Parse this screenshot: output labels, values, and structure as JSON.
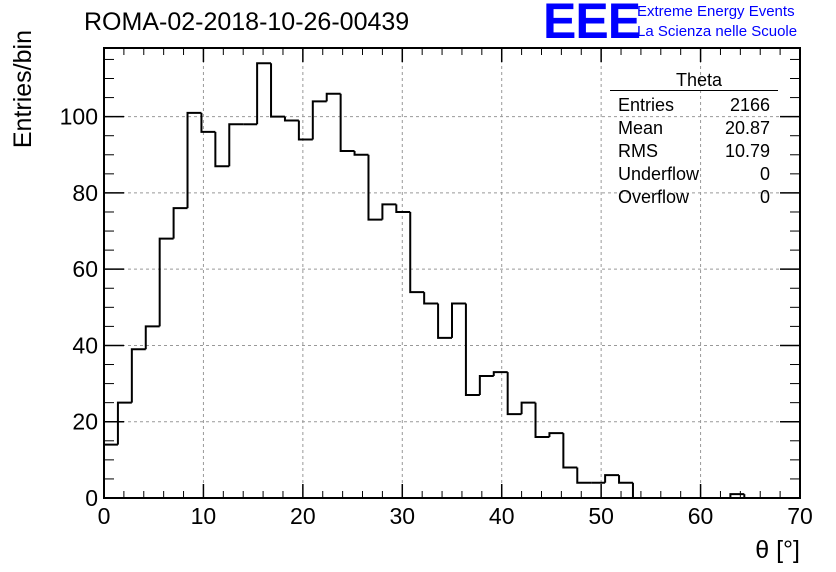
{
  "title": "ROMA-02-2018-10-26-00439",
  "logo": {
    "mark": "EEE",
    "line1": "Extreme Energy Events",
    "line2": "La Scienza nelle Scuole",
    "color": "#0000ff"
  },
  "stats_box": {
    "title": "Theta",
    "rows": [
      {
        "label": "Entries",
        "value": "2166"
      },
      {
        "label": "Mean",
        "value": "20.87"
      },
      {
        "label": "RMS",
        "value": "10.79"
      },
      {
        "label": "Underflow",
        "value": "0"
      },
      {
        "label": "Overflow",
        "value": "0"
      }
    ]
  },
  "chart_data": {
    "type": "histogram",
    "title": "ROMA-02-2018-10-26-00439",
    "xlabel": "θ [°]",
    "ylabel": "Entries/bin",
    "xlim": [
      0,
      70
    ],
    "ylim": [
      0,
      118
    ],
    "x_ticks": [
      0,
      10,
      20,
      30,
      40,
      50,
      60,
      70
    ],
    "y_ticks": [
      0,
      20,
      40,
      60,
      80,
      100
    ],
    "bin_width": 1.4,
    "bin_edges_start": 0,
    "values": [
      14,
      25,
      39,
      45,
      68,
      76,
      101,
      96,
      87,
      98,
      98,
      114,
      100,
      99,
      94,
      104,
      106,
      91,
      90,
      73,
      77,
      75,
      54,
      51,
      42,
      51,
      27,
      32,
      33,
      22,
      25,
      16,
      17,
      8,
      4,
      4,
      6,
      4,
      0,
      0,
      0,
      0,
      0,
      0,
      0,
      1,
      0,
      0,
      0,
      0
    ],
    "grid": true,
    "line_color": "#000000"
  }
}
